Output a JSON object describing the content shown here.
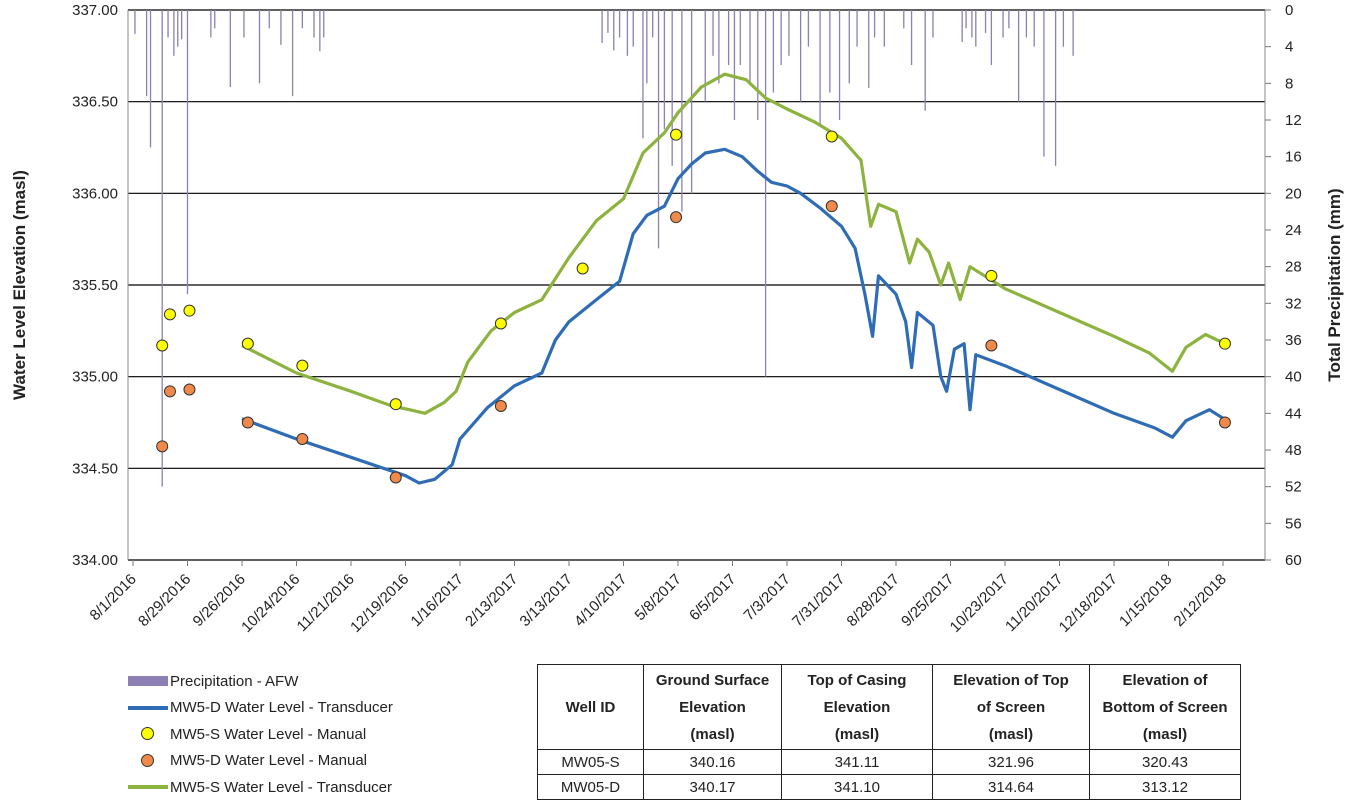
{
  "chart_data": {
    "type": "line",
    "ylabel": "Water Level Elevation (masl)",
    "y2label": "Total Precipitation (mm)",
    "ylim": [
      334.0,
      337.0
    ],
    "y2lim": [
      0,
      60
    ],
    "y2_inverted": true,
    "grid": true,
    "legend_position": "bottom-left",
    "y_ticks": [
      "334.00",
      "334.50",
      "335.00",
      "335.50",
      "336.00",
      "336.50",
      "337.00"
    ],
    "y2_ticks": [
      "0",
      "4",
      "8",
      "12",
      "16",
      "20",
      "24",
      "28",
      "32",
      "36",
      "40",
      "44",
      "48",
      "52",
      "56",
      "60"
    ],
    "x_ticks": [
      "8/1/2016",
      "8/29/2016",
      "9/26/2016",
      "10/24/2016",
      "11/21/2016",
      "12/19/2016",
      "1/16/2017",
      "2/13/2017",
      "3/13/2017",
      "4/10/2017",
      "5/8/2017",
      "6/5/2017",
      "7/3/2017",
      "7/31/2017",
      "8/28/2017",
      "9/25/2017",
      "10/23/2017",
      "11/20/2017",
      "12/18/2017",
      "1/15/2018",
      "2/12/2018"
    ],
    "colors": {
      "precip": "#8C7FB3",
      "deep_transducer": "#2E6CB5",
      "shallow_transducer": "#8DB33F",
      "shallow_manual": "#FFFF00",
      "deep_manual": "#F0894A"
    },
    "series": [
      {
        "name": "Precipitation - AFW",
        "kind": "bar",
        "axis": "y2",
        "points": [
          [
            "2016-08-02",
            2.6
          ],
          [
            "2016-08-08",
            9.4
          ],
          [
            "2016-08-10",
            15.0
          ],
          [
            "2016-08-16",
            52.0
          ],
          [
            "2016-08-19",
            3.0
          ],
          [
            "2016-08-22",
            5.0
          ],
          [
            "2016-08-24",
            4.0
          ],
          [
            "2016-08-26",
            3.2
          ],
          [
            "2016-08-29",
            31.0
          ],
          [
            "2016-09-10",
            3.0
          ],
          [
            "2016-09-12",
            2.0
          ],
          [
            "2016-09-20",
            8.4
          ],
          [
            "2016-09-27",
            3.0
          ],
          [
            "2016-10-05",
            8.0
          ],
          [
            "2016-10-10",
            2.0
          ],
          [
            "2016-10-16",
            3.8
          ],
          [
            "2016-10-22",
            9.4
          ],
          [
            "2016-10-27",
            2.0
          ],
          [
            "2016-11-02",
            3.0
          ],
          [
            "2016-11-05",
            4.5
          ],
          [
            "2016-11-07",
            3.0
          ],
          [
            "2017-03-30",
            3.6
          ],
          [
            "2017-04-02",
            2.5
          ],
          [
            "2017-04-05",
            4.4
          ],
          [
            "2017-04-08",
            3.0
          ],
          [
            "2017-04-12",
            5.0
          ],
          [
            "2017-04-15",
            4.0
          ],
          [
            "2017-04-20",
            14.0
          ],
          [
            "2017-04-22",
            8.0
          ],
          [
            "2017-04-25",
            3.0
          ],
          [
            "2017-04-28",
            26.0
          ],
          [
            "2017-05-01",
            13.0
          ],
          [
            "2017-05-05",
            17.0
          ],
          [
            "2017-05-10",
            22.0
          ],
          [
            "2017-05-15",
            20.0
          ],
          [
            "2017-05-22",
            10.0
          ],
          [
            "2017-05-26",
            5.0
          ],
          [
            "2017-05-29",
            8.0
          ],
          [
            "2017-06-03",
            6.0
          ],
          [
            "2017-06-06",
            12.0
          ],
          [
            "2017-06-09",
            6.0
          ],
          [
            "2017-06-14",
            8.0
          ],
          [
            "2017-06-18",
            12.0
          ],
          [
            "2017-06-22",
            40.0
          ],
          [
            "2017-06-26",
            9.0
          ],
          [
            "2017-06-30",
            6.0
          ],
          [
            "2017-07-04",
            5.0
          ],
          [
            "2017-07-10",
            10.0
          ],
          [
            "2017-07-14",
            4.0
          ],
          [
            "2017-07-20",
            12.5
          ],
          [
            "2017-07-25",
            9.0
          ],
          [
            "2017-07-30",
            12.0
          ],
          [
            "2017-08-04",
            8.0
          ],
          [
            "2017-08-08",
            4.0
          ],
          [
            "2017-08-14",
            8.5
          ],
          [
            "2017-08-17",
            3.0
          ],
          [
            "2017-08-22",
            4.0
          ],
          [
            "2017-09-01",
            2.0
          ],
          [
            "2017-09-05",
            6.0
          ],
          [
            "2017-09-12",
            11.0
          ],
          [
            "2017-09-16",
            3.0
          ],
          [
            "2017-10-01",
            3.5
          ],
          [
            "2017-10-03",
            2.0
          ],
          [
            "2017-10-06",
            3.0
          ],
          [
            "2017-10-08",
            4.0
          ],
          [
            "2017-10-13",
            2.5
          ],
          [
            "2017-10-16",
            6.0
          ],
          [
            "2017-10-22",
            3.0
          ],
          [
            "2017-10-25",
            2.0
          ],
          [
            "2017-10-30",
            10.0
          ],
          [
            "2017-11-03",
            3.0
          ],
          [
            "2017-11-07",
            4.0
          ],
          [
            "2017-11-12",
            16.0
          ],
          [
            "2017-11-18",
            17.0
          ],
          [
            "2017-11-22",
            4.0
          ],
          [
            "2017-11-27",
            5.0
          ]
        ]
      },
      {
        "name": "MW5-D Water Level - Transducer",
        "kind": "line",
        "axis": "y",
        "points": [
          [
            "2016-09-26",
            334.77
          ],
          [
            "2016-10-24",
            334.66
          ],
          [
            "2016-11-21",
            334.56
          ],
          [
            "2016-12-19",
            334.46
          ],
          [
            "2016-12-26",
            334.42
          ],
          [
            "2017-01-03",
            334.44
          ],
          [
            "2017-01-12",
            334.52
          ],
          [
            "2017-01-16",
            334.66
          ],
          [
            "2017-01-30",
            334.83
          ],
          [
            "2017-02-13",
            334.95
          ],
          [
            "2017-02-27",
            335.02
          ],
          [
            "2017-03-06",
            335.2
          ],
          [
            "2017-03-13",
            335.3
          ],
          [
            "2017-03-27",
            335.42
          ],
          [
            "2017-04-08",
            335.52
          ],
          [
            "2017-04-15",
            335.78
          ],
          [
            "2017-04-22",
            335.88
          ],
          [
            "2017-05-01",
            335.93
          ],
          [
            "2017-05-08",
            336.08
          ],
          [
            "2017-05-15",
            336.16
          ],
          [
            "2017-05-22",
            336.22
          ],
          [
            "2017-06-01",
            336.24
          ],
          [
            "2017-06-10",
            336.2
          ],
          [
            "2017-06-18",
            336.12
          ],
          [
            "2017-06-25",
            336.06
          ],
          [
            "2017-07-03",
            336.04
          ],
          [
            "2017-07-10",
            336.0
          ],
          [
            "2017-07-20",
            335.92
          ],
          [
            "2017-07-31",
            335.82
          ],
          [
            "2017-08-07",
            335.7
          ],
          [
            "2017-08-12",
            335.45
          ],
          [
            "2017-08-16",
            335.22
          ],
          [
            "2017-08-19",
            335.55
          ],
          [
            "2017-08-28",
            335.45
          ],
          [
            "2017-09-02",
            335.3
          ],
          [
            "2017-09-05",
            335.05
          ],
          [
            "2017-09-08",
            335.35
          ],
          [
            "2017-09-16",
            335.28
          ],
          [
            "2017-09-20",
            335.0
          ],
          [
            "2017-09-23",
            334.92
          ],
          [
            "2017-09-27",
            335.15
          ],
          [
            "2017-10-02",
            335.18
          ],
          [
            "2017-10-05",
            334.82
          ],
          [
            "2017-10-08",
            335.12
          ],
          [
            "2017-10-23",
            335.06
          ],
          [
            "2017-11-20",
            334.93
          ],
          [
            "2017-12-18",
            334.8
          ],
          [
            "2018-01-08",
            334.72
          ],
          [
            "2018-01-17",
            334.67
          ],
          [
            "2018-01-24",
            334.76
          ],
          [
            "2018-02-05",
            334.82
          ],
          [
            "2018-02-14",
            334.76
          ]
        ]
      },
      {
        "name": "MW5-S Water Level - Manual",
        "kind": "scatter",
        "axis": "y",
        "points": [
          [
            "2016-08-16",
            335.17
          ],
          [
            "2016-08-20",
            335.34
          ],
          [
            "2016-08-30",
            335.36
          ],
          [
            "2016-09-29",
            335.18
          ],
          [
            "2016-10-27",
            335.06
          ],
          [
            "2016-12-14",
            334.85
          ],
          [
            "2017-02-06",
            335.29
          ],
          [
            "2017-03-20",
            335.59
          ],
          [
            "2017-05-07",
            336.32
          ],
          [
            "2017-07-26",
            336.31
          ],
          [
            "2017-10-16",
            335.55
          ],
          [
            "2018-02-13",
            335.18
          ]
        ]
      },
      {
        "name": "MW5-D Water Level -  Manual",
        "kind": "scatter",
        "axis": "y",
        "points": [
          [
            "2016-08-16",
            334.62
          ],
          [
            "2016-08-20",
            334.92
          ],
          [
            "2016-08-30",
            334.93
          ],
          [
            "2016-09-29",
            334.75
          ],
          [
            "2016-10-27",
            334.66
          ],
          [
            "2016-12-14",
            334.45
          ],
          [
            "2017-02-06",
            334.84
          ],
          [
            "2017-05-07",
            335.87
          ],
          [
            "2017-07-26",
            335.93
          ],
          [
            "2017-10-16",
            335.17
          ],
          [
            "2018-02-13",
            334.75
          ]
        ]
      },
      {
        "name": "MW5-S Water Level - Transducer",
        "kind": "line",
        "axis": "y",
        "points": [
          [
            "2016-09-26",
            335.17
          ],
          [
            "2016-10-24",
            335.02
          ],
          [
            "2016-11-21",
            334.92
          ],
          [
            "2016-12-12",
            334.84
          ],
          [
            "2016-12-21",
            334.82
          ],
          [
            "2016-12-29",
            334.8
          ],
          [
            "2017-01-08",
            334.86
          ],
          [
            "2017-01-14",
            334.92
          ],
          [
            "2017-01-20",
            335.08
          ],
          [
            "2017-02-01",
            335.25
          ],
          [
            "2017-02-13",
            335.35
          ],
          [
            "2017-02-27",
            335.42
          ],
          [
            "2017-03-13",
            335.65
          ],
          [
            "2017-03-27",
            335.85
          ],
          [
            "2017-04-10",
            335.97
          ],
          [
            "2017-04-20",
            336.22
          ],
          [
            "2017-05-01",
            336.33
          ],
          [
            "2017-05-08",
            336.44
          ],
          [
            "2017-05-20",
            336.58
          ],
          [
            "2017-06-01",
            336.65
          ],
          [
            "2017-06-12",
            336.62
          ],
          [
            "2017-06-22",
            336.52
          ],
          [
            "2017-07-03",
            336.46
          ],
          [
            "2017-07-17",
            336.39
          ],
          [
            "2017-07-31",
            336.3
          ],
          [
            "2017-08-10",
            336.18
          ],
          [
            "2017-08-15",
            335.82
          ],
          [
            "2017-08-19",
            335.94
          ],
          [
            "2017-08-28",
            335.9
          ],
          [
            "2017-09-04",
            335.62
          ],
          [
            "2017-09-08",
            335.75
          ],
          [
            "2017-09-14",
            335.68
          ],
          [
            "2017-09-20",
            335.5
          ],
          [
            "2017-09-24",
            335.62
          ],
          [
            "2017-09-30",
            335.42
          ],
          [
            "2017-10-05",
            335.6
          ],
          [
            "2017-10-23",
            335.48
          ],
          [
            "2017-11-20",
            335.35
          ],
          [
            "2017-12-18",
            335.22
          ],
          [
            "2018-01-05",
            335.13
          ],
          [
            "2018-01-17",
            335.03
          ],
          [
            "2018-01-24",
            335.16
          ],
          [
            "2018-02-03",
            335.23
          ],
          [
            "2018-02-13",
            335.18
          ]
        ]
      }
    ]
  },
  "legend": [
    {
      "label": "Precipitation - AFW"
    },
    {
      "label": "MW5-D Water Level - Transducer"
    },
    {
      "label": "MW5-S Water Level - Manual"
    },
    {
      "label": "MW5-D Water Level -  Manual"
    },
    {
      "label": "MW5-S Water Level - Transducer"
    }
  ],
  "well_table": {
    "headers": [
      "Well ID",
      "Ground Surface Elevation (masl)",
      "Top of Casing Elevation (masl)",
      "Elevation of Top of Screen (masl)",
      "Elevation of Bottom of Screen (masl)"
    ],
    "rows": [
      [
        "MW05-S",
        "340.16",
        "341.11",
        "321.96",
        "320.43"
      ],
      [
        "MW05-D",
        "340.17",
        "341.10",
        "314.64",
        "313.12"
      ]
    ]
  }
}
